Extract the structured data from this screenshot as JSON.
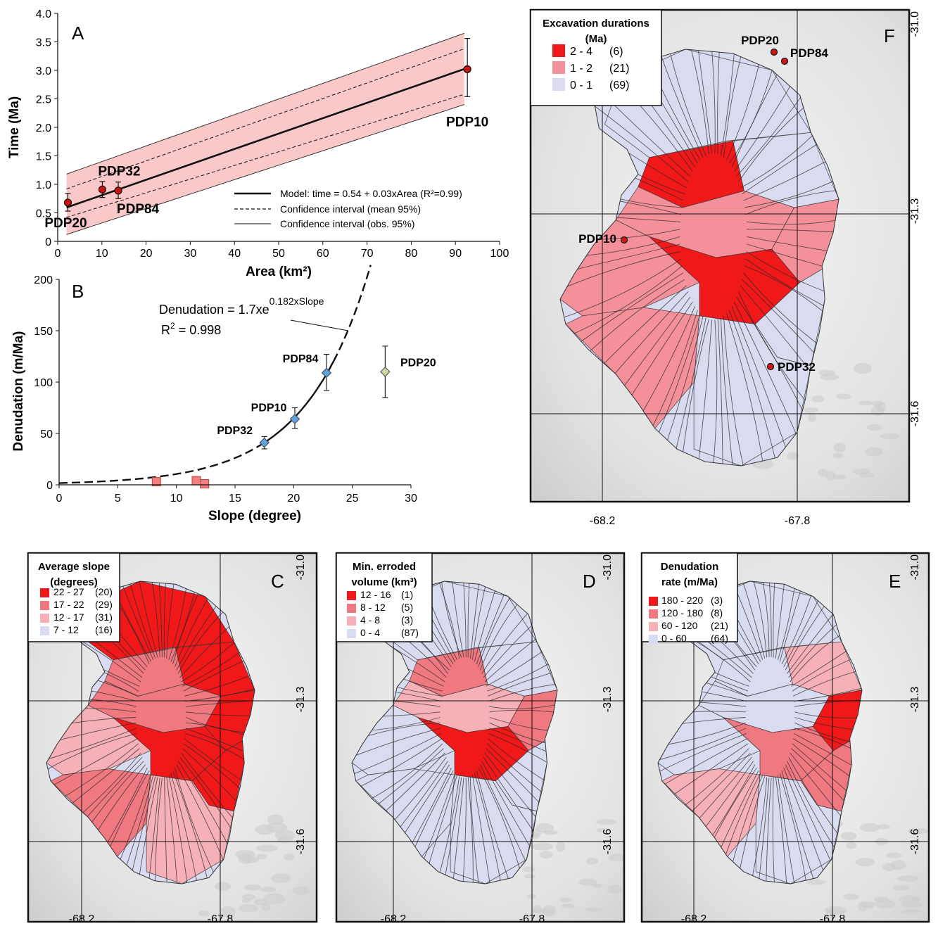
{
  "chart_data": [
    {
      "panel": "A",
      "type": "line",
      "panel_label": "A",
      "xlabel": "Area (km²)",
      "ylabel": "Time (Ma)",
      "xlim": [
        0,
        100
      ],
      "ylim": [
        0,
        4.0
      ],
      "x_ticks": [
        "0",
        "10",
        "20",
        "30",
        "40",
        "50",
        "60",
        "70",
        "80",
        "90",
        "100"
      ],
      "y_ticks": [
        "0",
        "0.5",
        "1.0",
        "1.5",
        "2.0",
        "2.5",
        "3.0",
        "3.5",
        "4.0"
      ],
      "points": [
        {
          "label": "PDP20",
          "x": 2.3,
          "y": 0.68,
          "err_low": 0.53,
          "err_high": 0.84
        },
        {
          "label": "PDP32",
          "x": 10.1,
          "y": 0.91,
          "err_low": 0.77,
          "err_high": 1.05
        },
        {
          "label": "PDP84",
          "x": 13.7,
          "y": 0.89,
          "err_low": 0.75,
          "err_high": 1.04
        },
        {
          "label": "PDP10",
          "x": 92.7,
          "y": 3.02,
          "err_low": 2.54,
          "err_high": 3.56
        }
      ],
      "model": {
        "intercept": 0.54,
        "slope": 0.027
      },
      "mean_ci": {
        "lower": [
          [
            2,
            0.42
          ],
          [
            92,
            2.58
          ]
        ],
        "upper": [
          [
            2,
            0.92
          ],
          [
            92,
            3.38
          ]
        ]
      },
      "obs_ci": {
        "lower": [
          [
            2,
            0.12
          ],
          [
            92,
            2.4
          ]
        ],
        "upper": [
          [
            2,
            1.18
          ],
          [
            92,
            3.65
          ]
        ]
      },
      "legend": [
        {
          "style": "thick",
          "text": "Model: time = 0.54 + 0.03xArea (R²=0.99)"
        },
        {
          "style": "dashed",
          "text": "Confidence interval (mean 95%)"
        },
        {
          "style": "thin",
          "text": "Confidence interval (obs. 95%)"
        }
      ],
      "legend_position": "bottom-right",
      "colors": {
        "band": "#f9c8c8",
        "point": "#cc1111"
      }
    },
    {
      "panel": "B",
      "type": "scatter",
      "panel_label": "B",
      "xlabel": "Slope (degree)",
      "ylabel": "Denudation (m/Ma)",
      "xlim": [
        0,
        30
      ],
      "ylim": [
        0,
        200
      ],
      "x_ticks": [
        "0",
        "5",
        "10",
        "15",
        "20",
        "25",
        "30"
      ],
      "y_ticks": [
        "0",
        "50",
        "100",
        "150",
        "200"
      ],
      "equation_main": "Denudation = 1.7xe",
      "equation_exp": "0.182xSlope",
      "r2_main": "R",
      "r2_exp": "2",
      "r2_rest": " = 0.998",
      "curve": {
        "a": 1.7,
        "b": 0.182
      },
      "diamonds": [
        {
          "label": "PDP32",
          "x": 17.5,
          "y": 41,
          "err_low": 35,
          "err_high": 47,
          "color": "#5ba3d9"
        },
        {
          "label": "PDP10",
          "x": 20.1,
          "y": 64,
          "err_low": 55,
          "err_high": 75,
          "color": "#5ba3d9"
        },
        {
          "label": "PDP84",
          "x": 22.8,
          "y": 109,
          "err_low": 92,
          "err_high": 127,
          "color": "#5ba3d9"
        },
        {
          "label": "PDP20",
          "x": 27.8,
          "y": 110,
          "err_low": 85,
          "err_high": 135,
          "color": "#cfd89a"
        }
      ],
      "squares": [
        {
          "x": 8.3,
          "y": 3
        },
        {
          "x": 11.7,
          "y": 4
        },
        {
          "x": 12.4,
          "y": 1
        }
      ],
      "colors": {
        "square": "#f08080"
      }
    }
  ],
  "maps": {
    "F": {
      "panel_label": "F",
      "legend_title_lines": [
        "Excavation durations",
        "(Ma)"
      ],
      "legend": [
        {
          "range": "2 - 4",
          "count": "(6)",
          "color": "#f01818"
        },
        {
          "range": "1 - 2",
          "count": "(21)",
          "color": "#f4909a"
        },
        {
          "range": "0 - 1",
          "count": "(69)",
          "color": "#d9dcf0"
        }
      ],
      "lat_labels": [
        "-31.0",
        "-31.3",
        "-31.6"
      ],
      "lon_labels": [
        "-68.2",
        "-67.8"
      ],
      "sites": [
        "PDP20",
        "PDP84",
        "PDP10",
        "PDP32"
      ]
    },
    "C": {
      "panel_label": "C",
      "legend_title_lines": [
        "Average slope",
        "(degrees)"
      ],
      "legend": [
        {
          "range": "22 - 27",
          "count": "(20)",
          "color": "#f01818"
        },
        {
          "range": "17 - 22",
          "count": "(29)",
          "color": "#f07880"
        },
        {
          "range": "12 - 17",
          "count": "(31)",
          "color": "#f6b0b8"
        },
        {
          "range": "7 - 12",
          "count": "(16)",
          "color": "#d9dcf0"
        }
      ],
      "lat_labels": [
        "-31.0",
        "-31.3",
        "-31.6"
      ],
      "lon_labels": [
        "-68.2",
        "-67.8"
      ]
    },
    "D": {
      "panel_label": "D",
      "legend_title_lines": [
        "Min. erroded",
        "volume (km³)"
      ],
      "legend": [
        {
          "range": "12 - 16",
          "count": "(1)",
          "color": "#f01818"
        },
        {
          "range": "8 - 12",
          "count": "(5)",
          "color": "#f07880"
        },
        {
          "range": "4 - 8",
          "count": "(3)",
          "color": "#f6b0b8"
        },
        {
          "range": "0 - 4",
          "count": "(87)",
          "color": "#d9dcf0"
        }
      ],
      "lat_labels": [
        "-31.0",
        "-31.3",
        "-31.6"
      ],
      "lon_labels": [
        "-68.2",
        "-67.8"
      ]
    },
    "E": {
      "panel_label": "E",
      "legend_title_lines": [
        "Denudation",
        "rate (m/Ma)"
      ],
      "legend": [
        {
          "range": "180 - 220",
          "count": "(3)",
          "color": "#f01818"
        },
        {
          "range": "120 - 180",
          "count": "(8)",
          "color": "#f07880"
        },
        {
          "range": "60 - 120",
          "count": "(21)",
          "color": "#f6b0b8"
        },
        {
          "range": "0 - 60",
          "count": "(64)",
          "color": "#d9dcf0"
        }
      ],
      "lat_labels": [
        "-31.0",
        "-31.3",
        "-31.6"
      ],
      "lon_labels": [
        "-68.2",
        "-67.8"
      ]
    }
  }
}
